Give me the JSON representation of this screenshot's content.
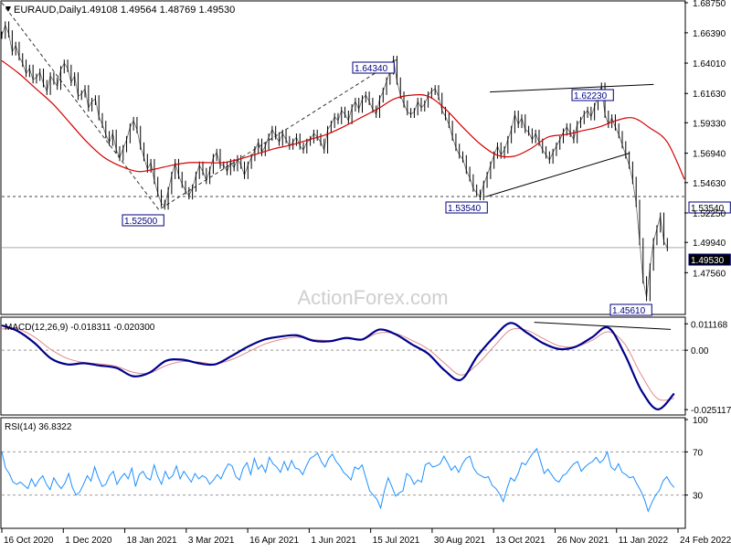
{
  "header": {
    "symbol": "EURAUD,Daily",
    "ohlc": "1.49108 1.49564 1.48769 1.49530"
  },
  "watermark": "ActionForex.com",
  "colors": {
    "price": "#000000",
    "ma": "#d40000",
    "macd": "#00008b",
    "signal": "#e08a8a",
    "rsi": "#1e90ff",
    "dashed": "#444444",
    "trendline": "#000000"
  },
  "chart_data": [
    {
      "type": "line",
      "panel": "price",
      "ylim": [
        1.445,
        1.6875
      ],
      "yticks": [
        "1.68750",
        "1.66390",
        "1.64010",
        "1.61630",
        "1.59330",
        "1.56940",
        "1.54630",
        "1.52250",
        "1.49940",
        "1.47560"
      ],
      "x_labels": [
        "16 Oct 2020",
        "1 Dec 2020",
        "18 Jan 2021",
        "3 Mar 2021",
        "16 Apr 2021",
        "1 Jun 2021",
        "15 Jul 2021",
        "30 Aug 2021",
        "13 Oct 2021",
        "26 Nov 2021",
        "11 Jan 2022",
        "24 Feb 2022"
      ],
      "series": [
        {
          "key": "close",
          "values": [
            1.662,
            1.67,
            1.663,
            1.649,
            1.654,
            1.645,
            1.64,
            1.632,
            1.636,
            1.627,
            1.629,
            1.633,
            1.624,
            1.618,
            1.63,
            1.626,
            1.622,
            1.635,
            1.64,
            1.636,
            1.625,
            1.63,
            1.614,
            1.616,
            1.62,
            1.605,
            1.61,
            1.612,
            1.598,
            1.592,
            1.584,
            1.578,
            1.585,
            1.572,
            1.566,
            1.573,
            1.58,
            1.59,
            1.595,
            1.588,
            1.575,
            1.566,
            1.557,
            1.562,
            1.548,
            1.538,
            1.53,
            1.528,
            1.54,
            1.552,
            1.562,
            1.552,
            1.545,
            1.54,
            1.536,
            1.542,
            1.552,
            1.56,
            1.555,
            1.548,
            1.556,
            1.566,
            1.57,
            1.56,
            1.56,
            1.555,
            1.562,
            1.558,
            1.565,
            1.56,
            1.552,
            1.56,
            1.566,
            1.572,
            1.578,
            1.57,
            1.575,
            1.582,
            1.588,
            1.583,
            1.578,
            1.585,
            1.58,
            1.575,
            1.578,
            1.582,
            1.575,
            1.572,
            1.578,
            1.58,
            1.585,
            1.582,
            1.578,
            1.572,
            1.588,
            1.592,
            1.598,
            1.595,
            1.603,
            1.6,
            1.595,
            1.605,
            1.61,
            1.604,
            1.612,
            1.615,
            1.61,
            1.604,
            1.6,
            1.612,
            1.618,
            1.626,
            1.634,
            1.643,
            1.626,
            1.615,
            1.608,
            1.602,
            1.6,
            1.602,
            1.61,
            1.605,
            1.608,
            1.615,
            1.618,
            1.62,
            1.614,
            1.603,
            1.598,
            1.592,
            1.582,
            1.574,
            1.568,
            1.565,
            1.556,
            1.55,
            1.542,
            1.538,
            1.5354,
            1.545,
            1.552,
            1.56,
            1.568,
            1.575,
            1.568,
            1.572,
            1.58,
            1.588,
            1.6,
            1.592,
            1.597,
            1.588,
            1.586,
            1.58,
            1.585,
            1.578,
            1.572,
            1.568,
            1.564,
            1.57,
            1.575,
            1.58,
            1.586,
            1.59,
            1.585,
            1.58,
            1.592,
            1.595,
            1.6,
            1.603,
            1.598,
            1.606,
            1.615,
            1.622,
            1.6,
            1.592,
            1.597,
            1.59,
            1.584,
            1.576,
            1.568,
            1.56,
            1.548,
            1.53,
            1.5,
            1.47,
            1.4561,
            1.48,
            1.5,
            1.51,
            1.52,
            1.5,
            1.4953
          ],
          "range": [
            0,
            195
          ]
        },
        {
          "key": "sma",
          "values": [
            1.642,
            1.632,
            1.62,
            1.608,
            1.593,
            1.578,
            1.566,
            1.559,
            1.555,
            1.557,
            1.56,
            1.562,
            1.562,
            1.562,
            1.565,
            1.569,
            1.573,
            1.576,
            1.58,
            1.584,
            1.59,
            1.597,
            1.604,
            1.612,
            1.615,
            1.614,
            1.604,
            1.59,
            1.577,
            1.568,
            1.567,
            1.573,
            1.582,
            1.584,
            1.587,
            1.59,
            1.595,
            1.597,
            1.589,
            1.578,
            1.549
          ],
          "range": [
            0,
            200
          ]
        }
      ],
      "annotations": [
        "1.64340",
        "1.62230",
        "1.52500",
        "1.53540",
        "1.45610",
        "1.53540",
        "1.49530"
      ]
    },
    {
      "type": "line",
      "panel": "macd",
      "title": "MACD(12,26,9) -0.018311 -0.020300",
      "ylim": [
        -0.0266,
        0.0132
      ],
      "yticks": [
        "0.011168",
        "0.00",
        "-0.025117"
      ],
      "series": [
        {
          "key": "macd",
          "values": [
            0.0105,
            0.008,
            0.003,
            -0.0035,
            -0.006,
            -0.0055,
            -0.0065,
            -0.0075,
            -0.011,
            -0.0095,
            -0.0045,
            -0.004,
            -0.0055,
            -0.006,
            -0.0025,
            0.0015,
            0.0045,
            0.0058,
            0.0063,
            0.004,
            0.0038,
            0.0052,
            0.0046,
            0.0087,
            0.0068,
            0.0025,
            -0.0015,
            -0.0085,
            -0.0125,
            -0.0025,
            0.0055,
            0.0115,
            0.0075,
            0.003,
            0.0005,
            0.0015,
            0.0055,
            0.0095,
            -0.002,
            -0.017,
            -0.025,
            -0.0183
          ],
          "range": [
            0,
            197
          ]
        },
        {
          "key": "signal",
          "values": [
            0.009,
            0.009,
            0.0055,
            0.0003,
            -0.0035,
            -0.0052,
            -0.0058,
            -0.0068,
            -0.0093,
            -0.0097,
            -0.0065,
            -0.0048,
            -0.005,
            -0.0058,
            -0.004,
            -0.0008,
            0.0025,
            0.0045,
            0.0055,
            0.0045,
            0.0041,
            0.0048,
            0.0047,
            0.0073,
            0.0071,
            0.0042,
            0.0005,
            -0.0055,
            -0.0105,
            -0.006,
            0.0015,
            0.0085,
            0.0085,
            0.005,
            0.0018,
            0.0015,
            0.0042,
            0.0078,
            0.0025,
            -0.0105,
            -0.0205,
            -0.0203
          ],
          "range": [
            0,
            197
          ]
        }
      ]
    },
    {
      "type": "line",
      "panel": "rsi",
      "title": "RSI(14) 36.8322",
      "ylim": [
        0,
        100
      ],
      "yticks": [
        "100",
        "70",
        "30"
      ],
      "series": [
        {
          "key": "rsi",
          "values": [
            70,
            55,
            50,
            42,
            40,
            42,
            39,
            36,
            45,
            38,
            44,
            48,
            40,
            35,
            46,
            40,
            36,
            41,
            50,
            37,
            30,
            33,
            40,
            48,
            43,
            56,
            46,
            38,
            40,
            48,
            52,
            40,
            46,
            50,
            45,
            55,
            38,
            49,
            52,
            46,
            44,
            58,
            47,
            40,
            52,
            45,
            48,
            57,
            45,
            52,
            47,
            42,
            50,
            45,
            48,
            46,
            40,
            44,
            49,
            45,
            53,
            59,
            57,
            47,
            44,
            55,
            60,
            49,
            64,
            54,
            58,
            51,
            65,
            59,
            56,
            51,
            61,
            53,
            62,
            55,
            54,
            49,
            57,
            64,
            66,
            69,
            61,
            56,
            64,
            68,
            61,
            57,
            51,
            48,
            44,
            56,
            54,
            58,
            46,
            34,
            30,
            26,
            18,
            34,
            46,
            38,
            29,
            32,
            34,
            50,
            47,
            40,
            44,
            42,
            58,
            60,
            56,
            57,
            59,
            66,
            60,
            53,
            57,
            51,
            59,
            64,
            66,
            55,
            50,
            48,
            46,
            47,
            39,
            36,
            31,
            24,
            36,
            46,
            43,
            50,
            60,
            58,
            64,
            69,
            73,
            62,
            50,
            54,
            49,
            44,
            42,
            48,
            50,
            55,
            59,
            61,
            52,
            56,
            59,
            61,
            65,
            60,
            63,
            70,
            56,
            53,
            59,
            51,
            49,
            46,
            47,
            40,
            34,
            26,
            15,
            23,
            30,
            34,
            43,
            47,
            41,
            37
          ],
          "range": [
            0,
            197
          ]
        }
      ]
    }
  ]
}
